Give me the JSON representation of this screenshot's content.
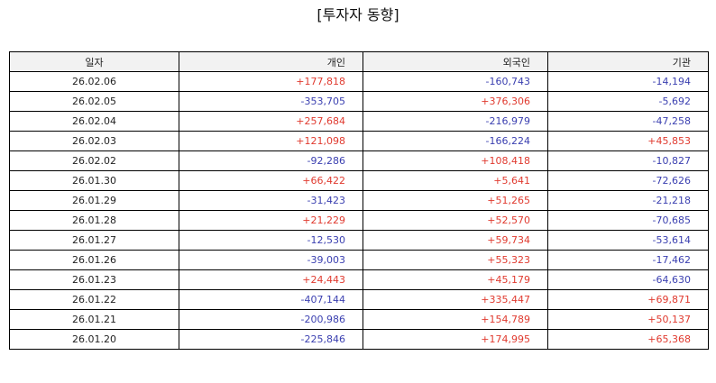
{
  "title": "[투자자 동향]",
  "columns": {
    "date": "일자",
    "individual": "개인",
    "foreign": "외국인",
    "institution": "기관"
  },
  "colors": {
    "positive": "#e03a2f",
    "negative": "#3a3fb0"
  },
  "rows": [
    {
      "date": "26.02.06",
      "individual": "+177,818",
      "foreign": "-160,743",
      "institution": "-14,194"
    },
    {
      "date": "26.02.05",
      "individual": "-353,705",
      "foreign": "+376,306",
      "institution": "-5,692"
    },
    {
      "date": "26.02.04",
      "individual": "+257,684",
      "foreign": "-216,979",
      "institution": "-47,258"
    },
    {
      "date": "26.02.03",
      "individual": "+121,098",
      "foreign": "-166,224",
      "institution": "+45,853"
    },
    {
      "date": "26.02.02",
      "individual": "-92,286",
      "foreign": "+108,418",
      "institution": "-10,827"
    },
    {
      "date": "26.01.30",
      "individual": "+66,422",
      "foreign": "+5,641",
      "institution": "-72,626"
    },
    {
      "date": "26.01.29",
      "individual": "-31,423",
      "foreign": "+51,265",
      "institution": "-21,218"
    },
    {
      "date": "26.01.28",
      "individual": "+21,229",
      "foreign": "+52,570",
      "institution": "-70,685"
    },
    {
      "date": "26.01.27",
      "individual": "-12,530",
      "foreign": "+59,734",
      "institution": "-53,614"
    },
    {
      "date": "26.01.26",
      "individual": "-39,003",
      "foreign": "+55,323",
      "institution": "-17,462"
    },
    {
      "date": "26.01.23",
      "individual": "+24,443",
      "foreign": "+45,179",
      "institution": "-64,630"
    },
    {
      "date": "26.01.22",
      "individual": "-407,144",
      "foreign": "+335,447",
      "institution": "+69,871"
    },
    {
      "date": "26.01.21",
      "individual": "-200,986",
      "foreign": "+154,789",
      "institution": "+50,137"
    },
    {
      "date": "26.01.20",
      "individual": "-225,846",
      "foreign": "+174,995",
      "institution": "+65,368"
    }
  ]
}
